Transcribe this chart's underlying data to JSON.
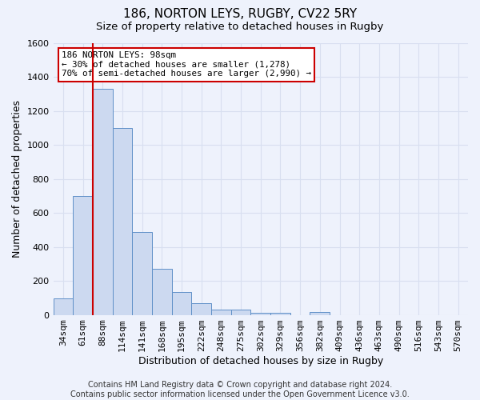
{
  "title": "186, NORTON LEYS, RUGBY, CV22 5RY",
  "subtitle": "Size of property relative to detached houses in Rugby",
  "xlabel": "Distribution of detached houses by size in Rugby",
  "ylabel": "Number of detached properties",
  "categories": [
    "34sqm",
    "61sqm",
    "88sqm",
    "114sqm",
    "141sqm",
    "168sqm",
    "195sqm",
    "222sqm",
    "248sqm",
    "275sqm",
    "302sqm",
    "329sqm",
    "356sqm",
    "382sqm",
    "409sqm",
    "436sqm",
    "463sqm",
    "490sqm",
    "516sqm",
    "543sqm",
    "570sqm"
  ],
  "values": [
    95,
    700,
    1330,
    1100,
    490,
    270,
    135,
    70,
    30,
    30,
    10,
    10,
    0,
    15,
    0,
    0,
    0,
    0,
    0,
    0,
    0
  ],
  "bar_color": "#ccd9f0",
  "bar_edge_color": "#6090c8",
  "red_line_index": 2,
  "annotation_text": "186 NORTON LEYS: 98sqm\n← 30% of detached houses are smaller (1,278)\n70% of semi-detached houses are larger (2,990) →",
  "annotation_box_color": "#ffffff",
  "annotation_box_edge_color": "#cc0000",
  "red_line_color": "#cc0000",
  "ylim": [
    0,
    1600
  ],
  "yticks": [
    0,
    200,
    400,
    600,
    800,
    1000,
    1200,
    1400,
    1600
  ],
  "background_color": "#eef2fc",
  "grid_color": "#d8dff0",
  "footer": "Contains HM Land Registry data © Crown copyright and database right 2024.\nContains public sector information licensed under the Open Government Licence v3.0.",
  "title_fontsize": 11,
  "subtitle_fontsize": 9.5,
  "xlabel_fontsize": 9,
  "ylabel_fontsize": 9,
  "tick_fontsize": 8,
  "footer_fontsize": 7
}
